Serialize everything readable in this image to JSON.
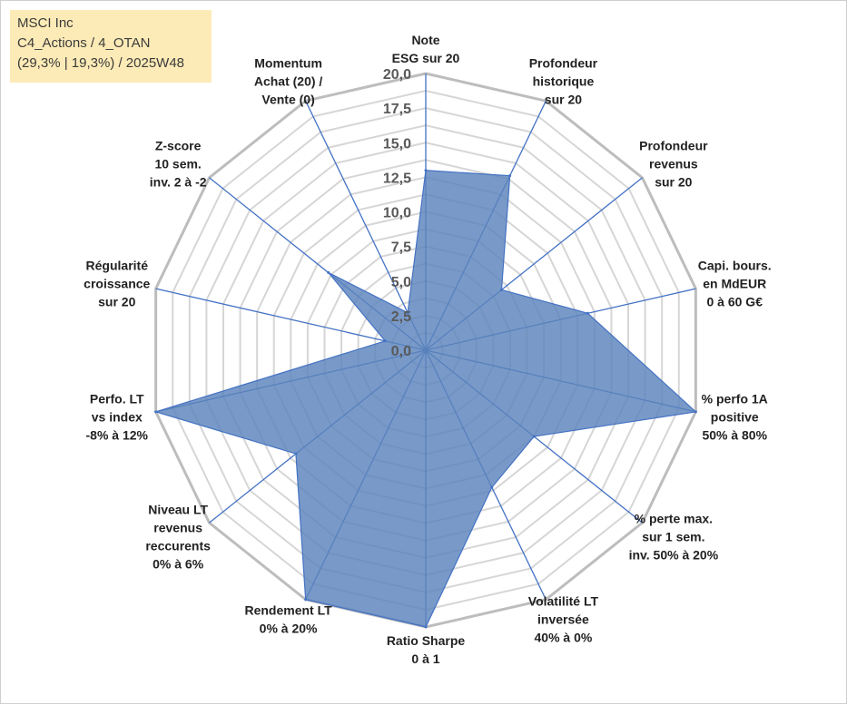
{
  "info": {
    "line1": "MSCI Inc",
    "line2": "C4_Actions / 4_OTAN",
    "line3": "(29,3% | 19,3%) / 2025W48"
  },
  "chart_data": {
    "type": "radar",
    "range": [
      0,
      20
    ],
    "ticks": [
      "0,0",
      "2,5",
      "5,0",
      "7,5",
      "10,0",
      "12,5",
      "15,0",
      "17,5",
      "20,0"
    ],
    "tick_values": [
      0,
      2.5,
      5,
      7.5,
      10,
      12.5,
      15,
      17.5,
      20
    ],
    "grid": true,
    "fill_color": "#5b84bc",
    "line_color": "#4472c4",
    "grid_color": "#bfbfbf",
    "axes": [
      {
        "label": [
          "Note",
          "ESG sur 20"
        ],
        "value": 13.0
      },
      {
        "label": [
          "Profondeur",
          "historique",
          "sur 20"
        ],
        "value": 14.0
      },
      {
        "label": [
          "Profondeur",
          "revenus",
          "sur 20"
        ],
        "value": 7.0
      },
      {
        "label": [
          "Capi. bours.",
          "en MdEUR",
          "0 à 60 G€"
        ],
        "value": 12.0
      },
      {
        "label": [
          "% perfo 1A",
          "positive",
          "50% à 80%"
        ],
        "value": 20.0
      },
      {
        "label": [
          "% perte max.",
          "sur 1 sem.",
          "inv. 50% à 20%"
        ],
        "value": 10.0
      },
      {
        "label": [
          "Volatilité LT",
          "inversée",
          "40% à 0%"
        ],
        "value": 11.0
      },
      {
        "label": [
          "Ratio Sharpe",
          "0 à 1"
        ],
        "value": 20.0
      },
      {
        "label": [
          "Rendement LT",
          "0% à 20%"
        ],
        "value": 20.0
      },
      {
        "label": [
          "Niveau LT",
          "revenus",
          "reccurents",
          "0% à 6%"
        ],
        "value": 12.0
      },
      {
        "label": [
          "Perfo. LT",
          "vs index",
          "-8% à 12%"
        ],
        "value": 20.0
      },
      {
        "label": [
          "Régularité",
          "croissance",
          "sur 20"
        ],
        "value": 3.0
      },
      {
        "label": [
          "Z-score",
          "10 sem.",
          "inv. 2 à -2"
        ],
        "value": 9.0
      },
      {
        "label": [
          "Momentum",
          "Achat (20) /",
          "Vente (0)"
        ],
        "value": 3.0
      }
    ]
  }
}
